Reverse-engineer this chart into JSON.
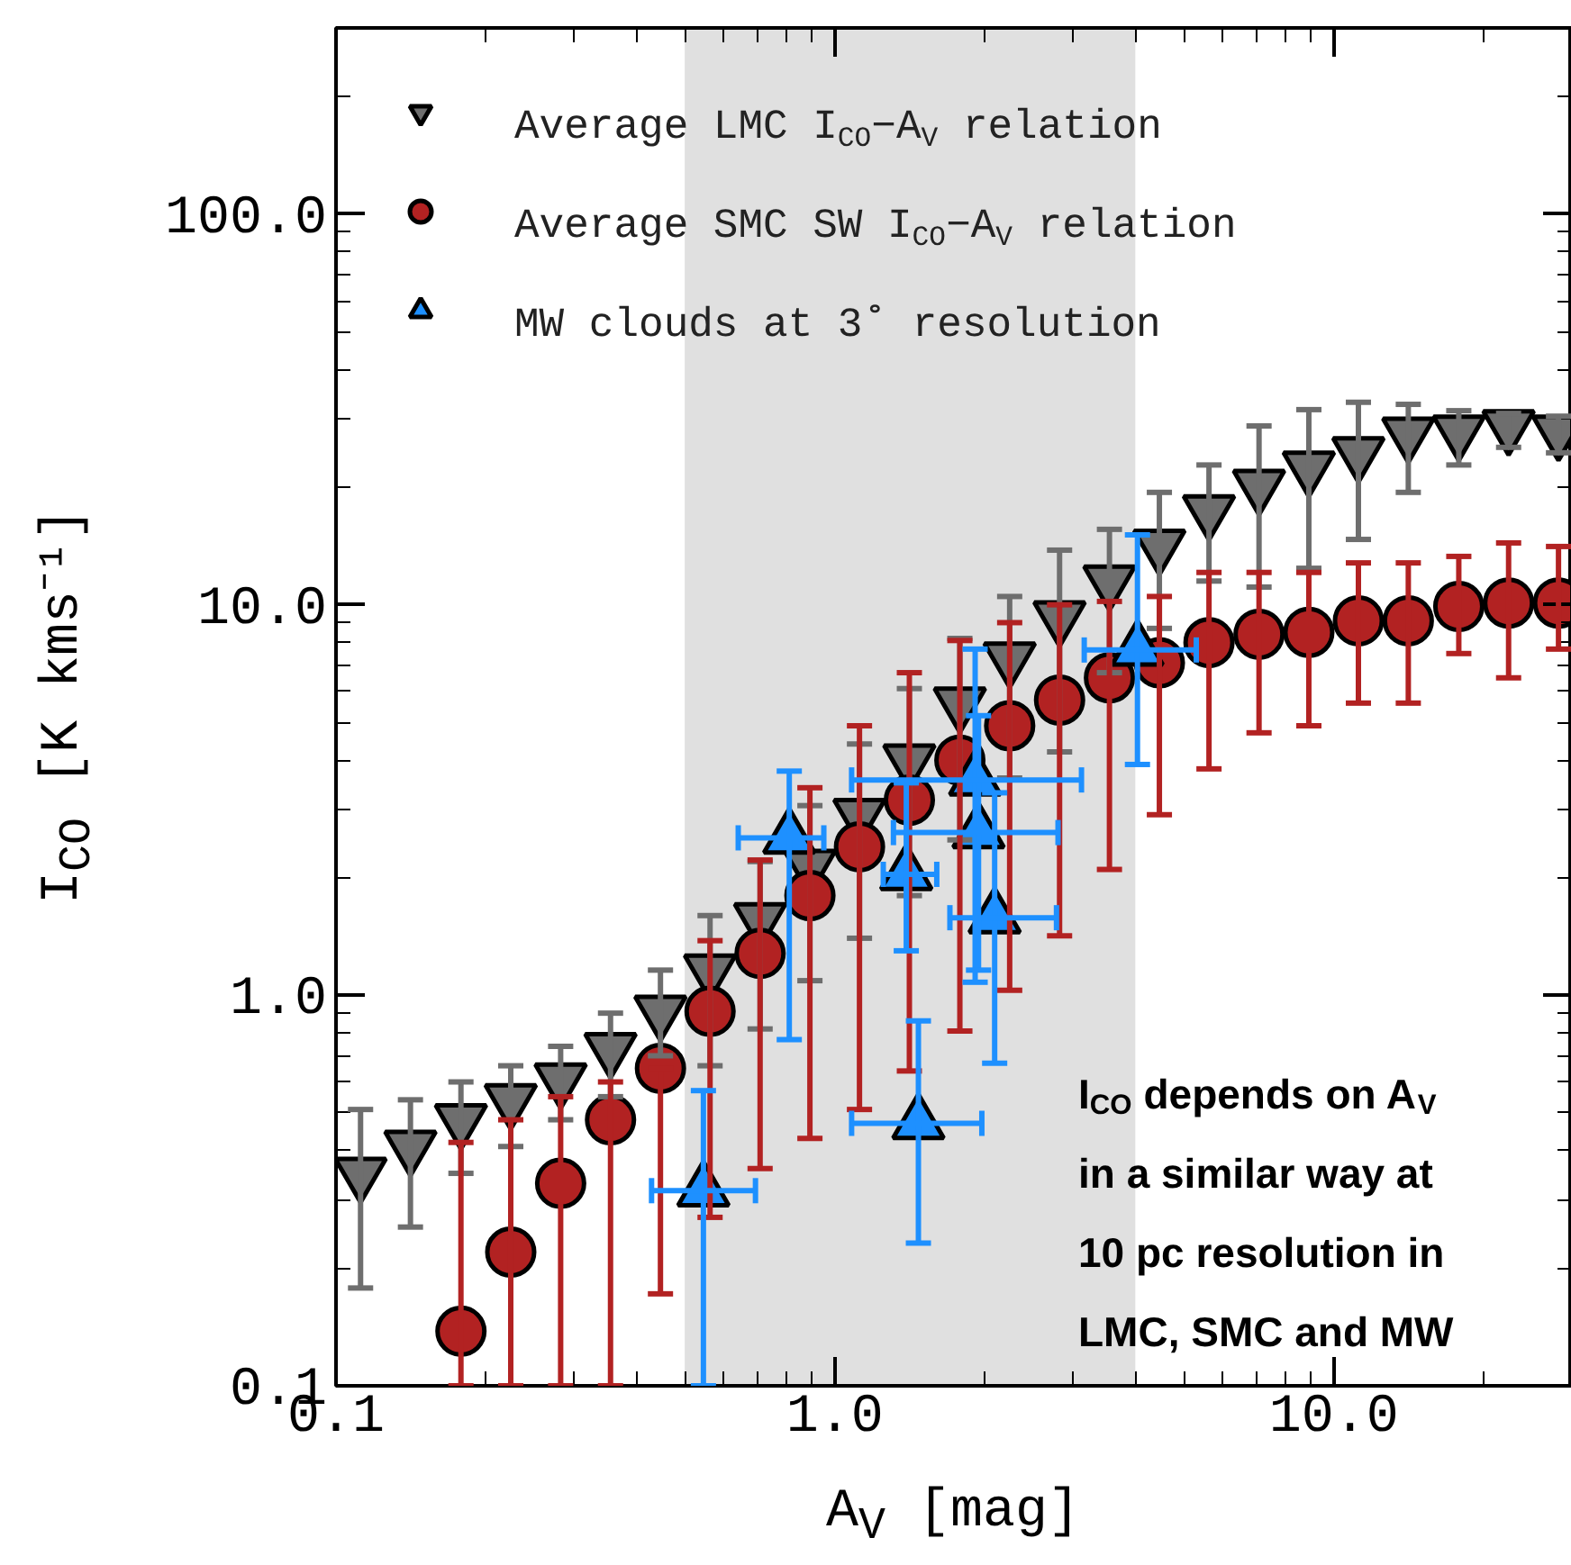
{
  "chart_data": {
    "type": "scatter",
    "xlabel": "A$_{V}$ [mag]",
    "ylabel": "I$_{CO}$ [K kms⁻¹]",
    "log": "xy",
    "xlim": [
      0.1,
      30
    ],
    "ylim": [
      0.1,
      300
    ],
    "xticks": [
      {
        "value": 0.1,
        "label": "0.1"
      },
      {
        "value": 1,
        "label": "1.0"
      },
      {
        "value": 10,
        "label": "10.0"
      }
    ],
    "yticks": [
      {
        "value": 0.1,
        "label": "0.1"
      },
      {
        "value": 1,
        "label": "1.0"
      },
      {
        "value": 10,
        "label": "10.0"
      },
      {
        "value": 100,
        "label": "100.0"
      }
    ],
    "grid": false,
    "legend": "top left",
    "bands": [
      {
        "axis": "x",
        "from": 0.5,
        "to": 4.0,
        "color": "#e0e0e0"
      }
    ],
    "annotations": [
      "I$_{CO}$ depends on A$_{V}$\nin a similar way at\n10 pc resolution in\nLMC, SMC and MW"
    ],
    "series": [
      {
        "name": "Average LMC I$_{CO}$−A$_{V}$ relation",
        "color": "#6e6e6e",
        "marker": "triangle_down",
        "x": [
          0.112,
          0.141,
          0.178,
          0.224,
          0.282,
          0.355,
          0.447,
          0.562,
          0.708,
          0.891,
          1.12,
          1.41,
          1.78,
          2.24,
          2.82,
          3.55,
          4.47,
          5.62,
          7.08,
          8.91,
          11.2,
          14.1,
          17.8,
          22.4,
          28.2
        ],
        "values": [
          0.35,
          0.41,
          0.48,
          0.54,
          0.61,
          0.73,
          0.91,
          1.16,
          1.57,
          2.15,
          2.9,
          4.0,
          5.6,
          7.3,
          9.3,
          11.5,
          14.2,
          17.4,
          20.2,
          22.5,
          24.5,
          27.5,
          27.8,
          28.7,
          27.8
        ],
        "errors": [
          [
            0.178,
            0.51
          ],
          [
            0.255,
            0.54
          ],
          [
            0.35,
            0.6
          ],
          [
            0.41,
            0.66
          ],
          [
            0.48,
            0.74
          ],
          [
            0.55,
            0.9
          ],
          [
            0.7,
            1.16
          ],
          [
            0.66,
            1.6
          ],
          [
            0.82,
            2.2
          ],
          [
            1.09,
            3.06
          ],
          [
            1.4,
            4.4
          ],
          [
            1.8,
            6.1
          ],
          [
            2.5,
            8.2
          ],
          [
            3.6,
            10.5
          ],
          [
            4.2,
            13.8
          ],
          [
            6.7,
            15.6
          ],
          [
            8.7,
            19.4
          ],
          [
            11.5,
            22.8
          ],
          [
            11.1,
            28.7
          ],
          [
            12.4,
            31.6
          ],
          [
            14.7,
            33
          ],
          [
            19.4,
            32.6
          ],
          [
            22.8,
            31.4
          ],
          [
            25.3,
            30.9
          ],
          [
            24.5,
            30.4
          ]
        ]
      },
      {
        "name": "Average SMC SW I$_{CO}$−A$_{V}$ relation",
        "color": "#b22222",
        "marker": "circle",
        "x": [
          0.178,
          0.224,
          0.282,
          0.355,
          0.447,
          0.562,
          0.708,
          0.891,
          1.12,
          1.41,
          1.78,
          2.24,
          2.82,
          3.55,
          4.47,
          5.62,
          7.08,
          8.91,
          11.2,
          14.1,
          17.8,
          22.4,
          28.2
        ],
        "values": [
          0.138,
          0.22,
          0.33,
          0.48,
          0.65,
          0.91,
          1.28,
          1.8,
          2.4,
          3.16,
          4.0,
          4.9,
          5.7,
          6.5,
          7.1,
          8.0,
          8.4,
          8.5,
          9.1,
          9.1,
          9.9,
          10.1,
          10.1
        ],
        "errors": [
          [
            0.1,
            0.42
          ],
          [
            0.1,
            0.48
          ],
          [
            0.1,
            0.55
          ],
          [
            0.1,
            0.6
          ],
          [
            0.172,
            0.65
          ],
          [
            0.27,
            1.38
          ],
          [
            0.36,
            2.22
          ],
          [
            0.43,
            3.4
          ],
          [
            0.51,
            4.9
          ],
          [
            0.64,
            6.7
          ],
          [
            0.81,
            8.1
          ],
          [
            1.03,
            9.0
          ],
          [
            1.42,
            10
          ],
          [
            2.1,
            10.2
          ],
          [
            2.9,
            10.5
          ],
          [
            3.8,
            12.1
          ],
          [
            4.7,
            12.1
          ],
          [
            4.9,
            12.1
          ],
          [
            5.6,
            12.8
          ],
          [
            5.6,
            12.8
          ],
          [
            7.5,
            13.3
          ],
          [
            6.5,
            14.4
          ],
          [
            7.7,
            14.1
          ]
        ]
      },
      {
        "name": "MW clouds at 3˚ resolution",
        "color": "#1e90ff",
        "marker": "triangle",
        "x": [
          0.545,
          0.81,
          1.39,
          1.47,
          1.91,
          1.94,
          2.09,
          4.04
        ],
        "values": [
          0.316,
          2.53,
          2.04,
          0.47,
          3.56,
          2.61,
          1.58,
          7.66
        ],
        "errors": [
          [
            0.1,
            0.57
          ],
          [
            0.77,
            3.75
          ],
          [
            1.3,
            3.5
          ],
          [
            0.232,
            0.86
          ],
          [
            1.08,
            7.7
          ],
          [
            1.16,
            5.2
          ],
          [
            0.67,
            3.3
          ],
          [
            3.9,
            15.1
          ]
        ],
        "xerrors": [
          [
            0.429,
            0.693
          ],
          [
            0.64,
            0.95
          ],
          [
            1.25,
            1.6
          ],
          [
            1.08,
            1.97
          ],
          [
            1.08,
            3.12
          ],
          [
            1.31,
            2.8
          ],
          [
            1.7,
            2.78
          ],
          [
            3.16,
            5.3
          ]
        ]
      }
    ]
  }
}
